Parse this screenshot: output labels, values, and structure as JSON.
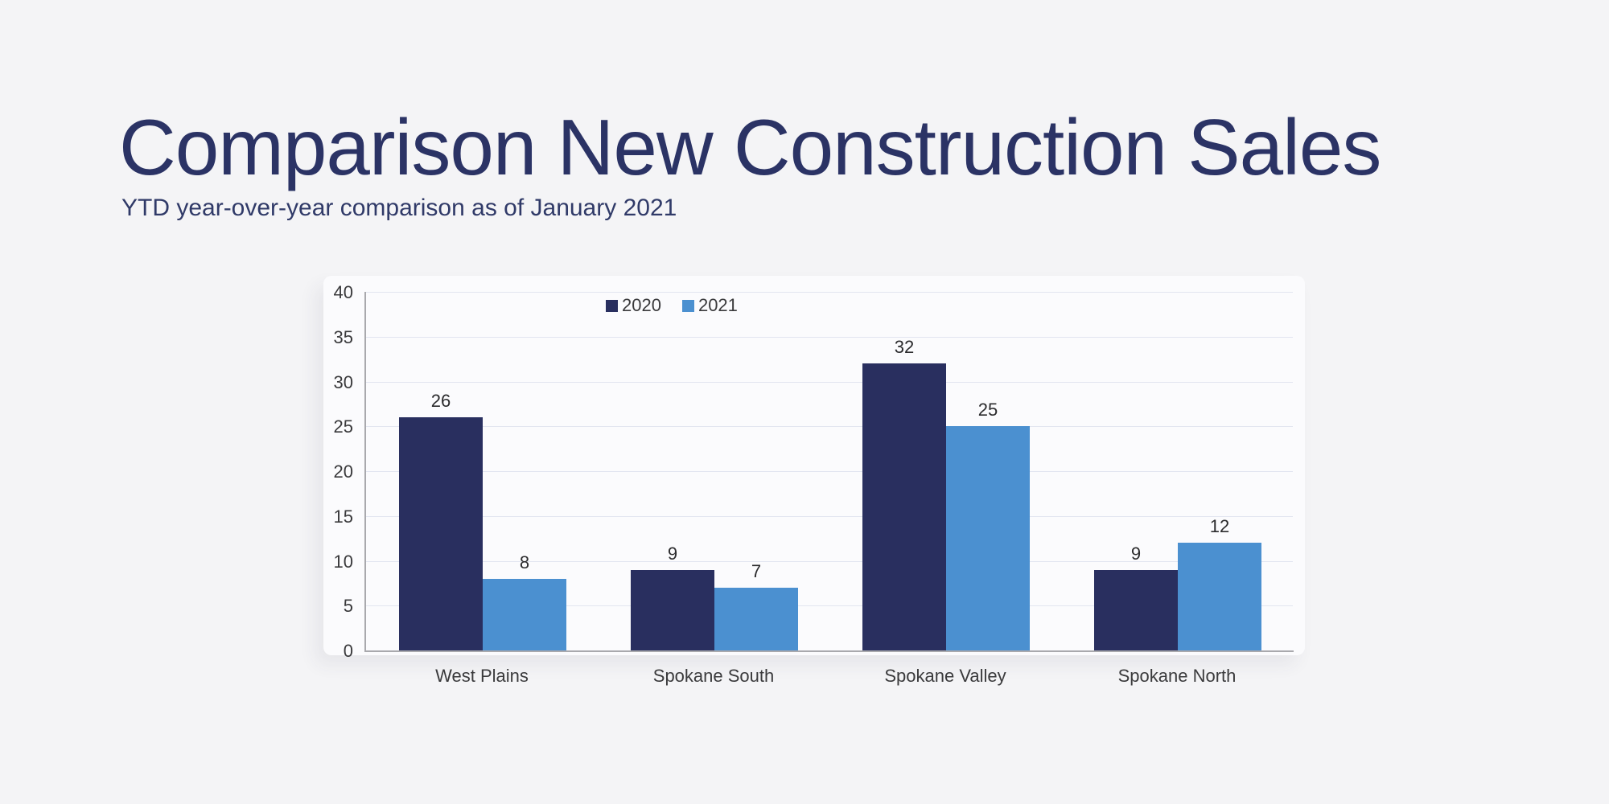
{
  "slide": {
    "title": "Comparison New Construction Sales",
    "subtitle": "YTD year-over-year comparison as of January 2021"
  },
  "colors": {
    "page_background": "#f4f4f6",
    "card_background": "#fbfbfd",
    "title_text": "#2b3365",
    "subtitle_text": "#303a68",
    "series_2020": "#292f5f",
    "series_2021": "#4b90d0",
    "gridline": "#e2e5f0",
    "axis_line": "#a9a9ad",
    "tick_label": "#3a3a3c",
    "data_label": "#2b2b2d"
  },
  "chart_data": {
    "type": "bar",
    "title": "",
    "categories": [
      "West Plains",
      "Spokane South",
      "Spokane Valley",
      "Spokane North"
    ],
    "series": [
      {
        "name": "2020",
        "color": "#292f5f",
        "values": [
          26,
          9,
          32,
          9
        ]
      },
      {
        "name": "2021",
        "color": "#4b90d0",
        "values": [
          8,
          7,
          25,
          12
        ]
      }
    ],
    "xlabel": "",
    "ylabel": "",
    "ylim": [
      0,
      40
    ],
    "yticks": [
      0,
      5,
      10,
      15,
      20,
      25,
      30,
      35,
      40
    ],
    "grid": true,
    "data_labels": true,
    "legend_position": "top-inside"
  }
}
